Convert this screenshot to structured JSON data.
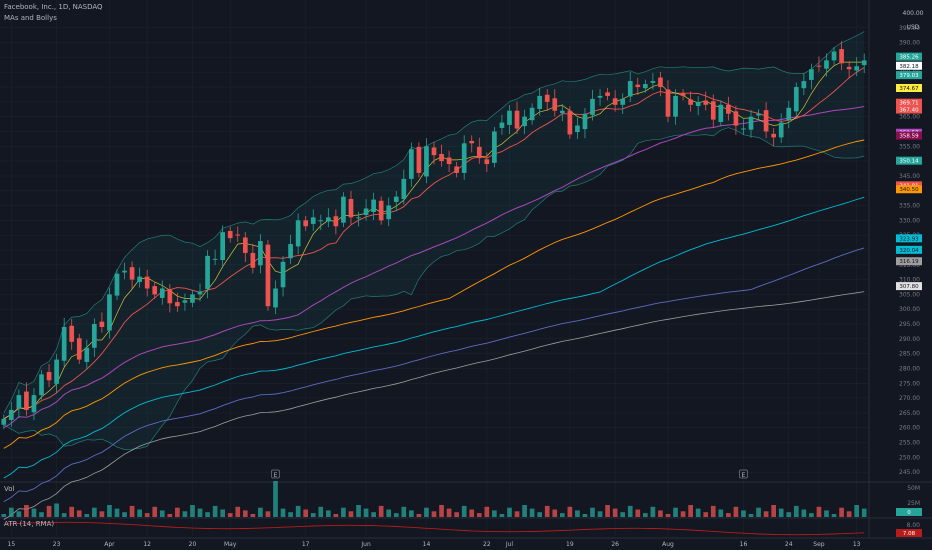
{
  "header": {
    "symbol_title": "Facebook, Inc., 1D, NASDAQ",
    "indicator_name": "MAs and Bollys",
    "currency": "USD",
    "currency_top": "400.00"
  },
  "panes": {
    "volume_label": "Vol",
    "atr_label": "ATR (14, RMA)"
  },
  "colors": {
    "background": "#131722",
    "up": "#26a69a",
    "down": "#ef5350",
    "grid": "#1e222d",
    "ma_short": "#ef5350",
    "ma_mid": "#ab47bc",
    "ma_long": "#ff9800",
    "ma_100": "#00bcd4",
    "ma_150": "#5c6bc0",
    "ma_200": "#9e9e9e",
    "bollinger": "#26a69a"
  },
  "chart_data": {
    "type": "candlestick",
    "title": "Facebook, Inc., 1D, NASDAQ",
    "y_ticks": [
      245,
      250,
      255,
      260,
      265,
      270,
      275,
      280,
      285,
      290,
      295,
      300,
      305,
      310,
      315,
      320,
      325,
      330,
      335,
      340,
      345,
      350,
      355,
      360,
      365,
      370,
      375,
      380,
      385,
      390,
      395
    ],
    "y_tick_labels": [
      "245.00",
      "250.00",
      "255.00",
      "260.00",
      "265.00",
      "270.00",
      "275.00",
      "280.00",
      "285.00",
      "290.00",
      "295.00",
      "300.00",
      "305.00",
      "310.00",
      "315.00",
      "320.00",
      "325.00",
      "330.00",
      "335.00",
      "340.00",
      "345.00",
      "350.00",
      "355.00",
      "360.00",
      "365.00",
      "370.00",
      "375.00",
      "380.00",
      "385.00",
      "390.00",
      "395.00"
    ],
    "ylim": [
      241,
      401
    ],
    "x_labels": [
      "15",
      "23",
      "Apr",
      "12",
      "20",
      "May",
      "17",
      "Jun",
      "14",
      "22",
      "Jul",
      "19",
      "26",
      "Aug",
      "16",
      "24",
      "Sep",
      "13"
    ],
    "x_label_bars": [
      1,
      7,
      14,
      19,
      25,
      30,
      40,
      48,
      56,
      64,
      67,
      75,
      81,
      88,
      98,
      104,
      108,
      113
    ],
    "n_bars": 115,
    "closes": [
      263,
      266,
      271,
      266,
      271,
      278,
      276,
      283,
      294,
      289,
      283,
      287,
      295,
      294,
      305,
      312,
      313,
      310,
      311,
      307,
      305,
      307,
      302,
      301,
      303,
      305,
      306,
      318,
      317,
      326,
      324,
      325,
      319,
      314,
      323,
      301,
      307,
      316,
      322,
      330,
      328,
      331,
      330,
      331,
      328,
      338,
      331,
      331,
      334,
      337,
      330,
      335,
      338,
      344,
      354,
      346,
      355,
      352,
      350,
      349,
      346,
      356,
      356,
      351,
      349,
      360,
      363,
      367,
      361,
      365,
      368,
      372,
      370,
      367,
      367,
      359,
      362,
      366,
      371,
      372,
      372,
      369,
      371,
      377,
      375,
      376,
      377,
      375,
      365,
      372,
      372,
      369,
      370,
      369,
      364,
      369,
      366,
      362,
      361,
      365,
      366,
      360,
      358,
      363,
      368,
      375,
      377,
      381,
      382,
      384,
      387,
      383,
      381,
      382,
      384
    ],
    "labeled_price_markers": [
      "385.26",
      "382.18",
      "379.03",
      "374.67",
      "369.71",
      "367.40",
      "359.57",
      "358.59",
      "350.14",
      "341.81",
      "340.50",
      "323.93",
      "320.04",
      "316.19",
      "307.80"
    ],
    "volume_axis": [
      "50M",
      "25M",
      "0"
    ],
    "atr_axis": [
      "8.00",
      "7.08"
    ],
    "annotations": [
      "E",
      "E"
    ],
    "series": [
      {
        "name": "Price",
        "type": "candlestick"
      },
      {
        "type": "line",
        "role": "moving-average"
      },
      {
        "type": "band",
        "role": "bollinger"
      }
    ]
  }
}
